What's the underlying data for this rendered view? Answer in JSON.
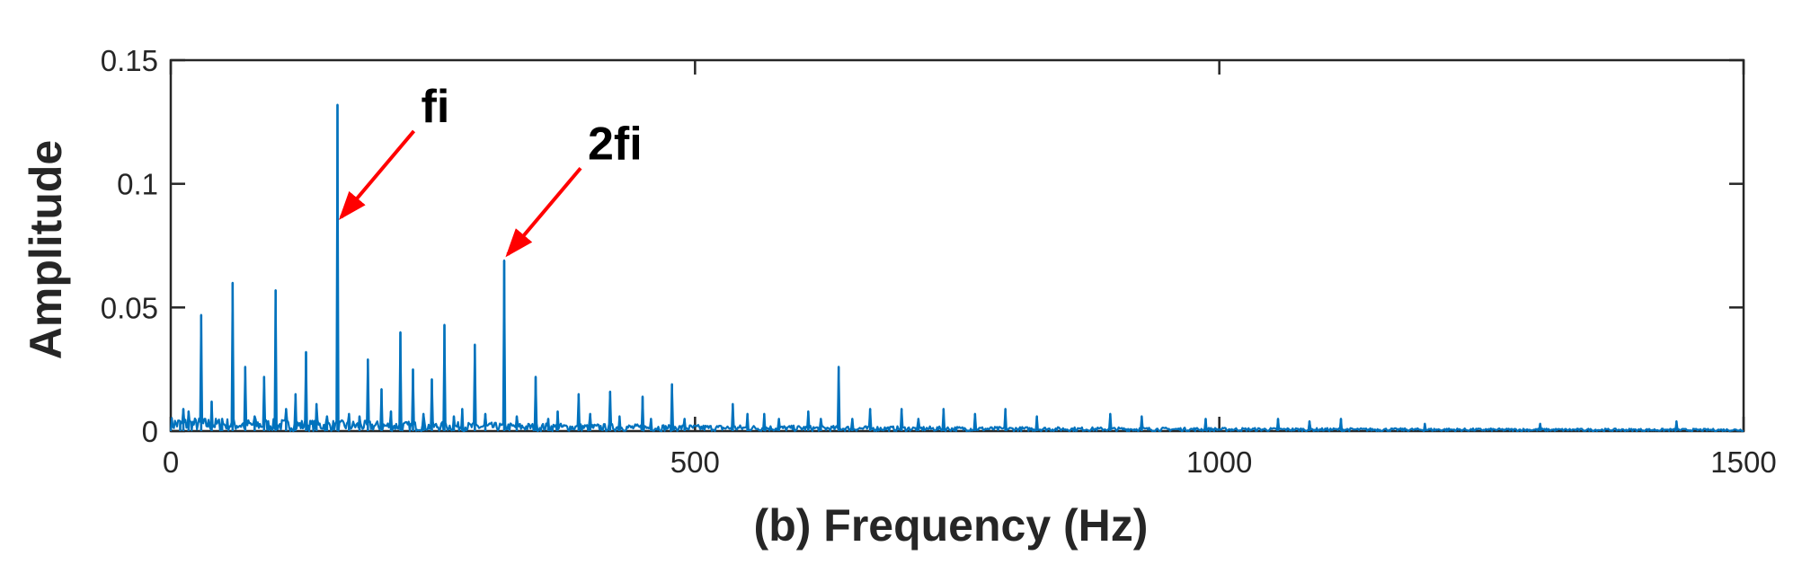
{
  "chart_data": {
    "type": "line",
    "title": "",
    "xlabel": "(b) Frequency (Hz)",
    "ylabel": "Amplitude",
    "xlim": [
      0,
      1500
    ],
    "ylim": [
      0,
      0.15
    ],
    "x_ticks": [
      0,
      500,
      1000,
      1500
    ],
    "x_tick_labels": [
      "0",
      "500",
      "1000",
      "1500"
    ],
    "y_ticks": [
      0,
      0.05,
      0.1,
      0.15
    ],
    "y_tick_labels": [
      "0",
      "0.05",
      "0.1",
      "0.15"
    ],
    "grid": false,
    "series_color": "#0072BD",
    "annotation_color": "#FF0000",
    "peaks": [
      {
        "x": 9,
        "y": 0.004
      },
      {
        "x": 12,
        "y": 0.009
      },
      {
        "x": 17,
        "y": 0.008
      },
      {
        "x": 29,
        "y": 0.047
      },
      {
        "x": 39,
        "y": 0.012
      },
      {
        "x": 49,
        "y": 0.005
      },
      {
        "x": 59,
        "y": 0.06
      },
      {
        "x": 71,
        "y": 0.026
      },
      {
        "x": 80,
        "y": 0.006
      },
      {
        "x": 89,
        "y": 0.022
      },
      {
        "x": 100,
        "y": 0.057
      },
      {
        "x": 110,
        "y": 0.009
      },
      {
        "x": 119,
        "y": 0.015
      },
      {
        "x": 129,
        "y": 0.032
      },
      {
        "x": 139,
        "y": 0.011
      },
      {
        "x": 149,
        "y": 0.006
      },
      {
        "x": 159,
        "y": 0.132
      },
      {
        "x": 170,
        "y": 0.007
      },
      {
        "x": 180,
        "y": 0.006
      },
      {
        "x": 188,
        "y": 0.029
      },
      {
        "x": 201,
        "y": 0.017
      },
      {
        "x": 210,
        "y": 0.008
      },
      {
        "x": 219,
        "y": 0.04
      },
      {
        "x": 231,
        "y": 0.025
      },
      {
        "x": 241,
        "y": 0.007
      },
      {
        "x": 249,
        "y": 0.021
      },
      {
        "x": 261,
        "y": 0.043
      },
      {
        "x": 270,
        "y": 0.006
      },
      {
        "x": 278,
        "y": 0.009
      },
      {
        "x": 290,
        "y": 0.035
      },
      {
        "x": 300,
        "y": 0.007
      },
      {
        "x": 318,
        "y": 0.069
      },
      {
        "x": 330,
        "y": 0.006
      },
      {
        "x": 348,
        "y": 0.022
      },
      {
        "x": 360,
        "y": 0.005
      },
      {
        "x": 369,
        "y": 0.008
      },
      {
        "x": 389,
        "y": 0.015
      },
      {
        "x": 400,
        "y": 0.007
      },
      {
        "x": 419,
        "y": 0.016
      },
      {
        "x": 428,
        "y": 0.006
      },
      {
        "x": 450,
        "y": 0.014
      },
      {
        "x": 458,
        "y": 0.005
      },
      {
        "x": 478,
        "y": 0.019
      },
      {
        "x": 490,
        "y": 0.005
      },
      {
        "x": 536,
        "y": 0.011
      },
      {
        "x": 550,
        "y": 0.007
      },
      {
        "x": 566,
        "y": 0.007
      },
      {
        "x": 580,
        "y": 0.005
      },
      {
        "x": 608,
        "y": 0.008
      },
      {
        "x": 620,
        "y": 0.005
      },
      {
        "x": 637,
        "y": 0.026
      },
      {
        "x": 650,
        "y": 0.005
      },
      {
        "x": 667,
        "y": 0.009
      },
      {
        "x": 697,
        "y": 0.009
      },
      {
        "x": 713,
        "y": 0.005
      },
      {
        "x": 737,
        "y": 0.009
      },
      {
        "x": 767,
        "y": 0.007
      },
      {
        "x": 796,
        "y": 0.009
      },
      {
        "x": 826,
        "y": 0.006
      },
      {
        "x": 896,
        "y": 0.007
      },
      {
        "x": 926,
        "y": 0.006
      },
      {
        "x": 987,
        "y": 0.005
      },
      {
        "x": 1056,
        "y": 0.005
      },
      {
        "x": 1086,
        "y": 0.004
      },
      {
        "x": 1116,
        "y": 0.005
      },
      {
        "x": 1196,
        "y": 0.003
      },
      {
        "x": 1306,
        "y": 0.003
      },
      {
        "x": 1436,
        "y": 0.004
      }
    ],
    "annotations": [
      {
        "text": "fi",
        "target_x": 159,
        "target_y": 0.085
      },
      {
        "text": "2fi",
        "target_x": 318,
        "target_y": 0.07
      }
    ]
  }
}
